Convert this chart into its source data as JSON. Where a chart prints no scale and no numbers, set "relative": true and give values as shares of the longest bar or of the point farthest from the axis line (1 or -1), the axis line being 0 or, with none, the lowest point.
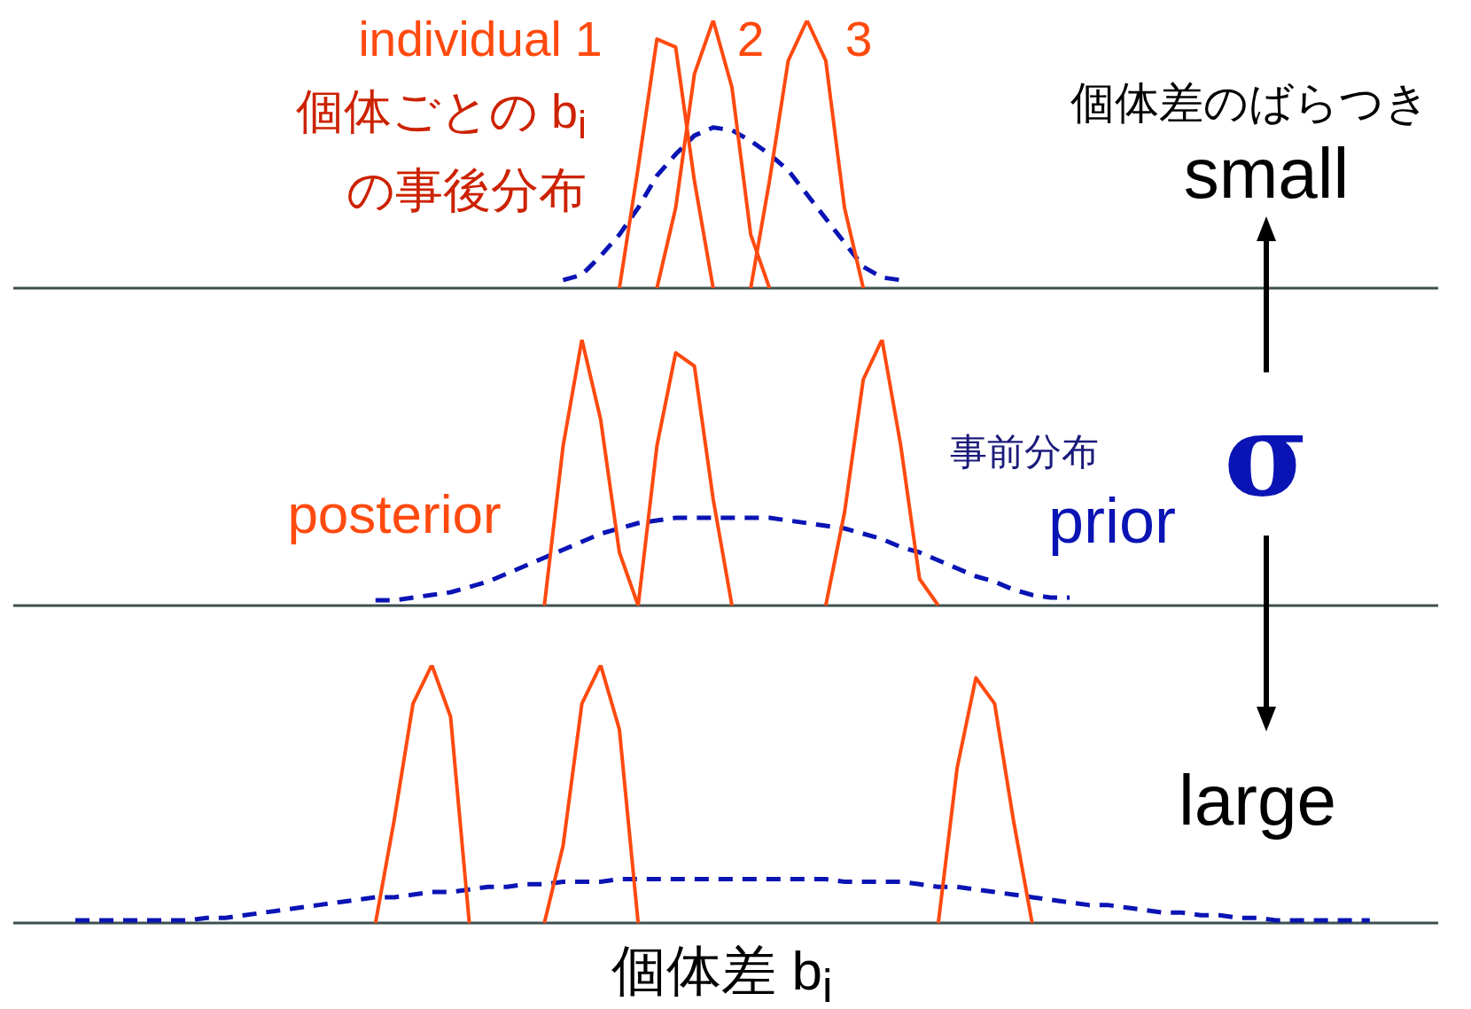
{
  "chart_data": [
    {
      "type": "line",
      "relative": true,
      "categories": [
        null,
        null,
        null,
        null,
        null,
        null,
        null,
        null,
        null,
        null,
        null,
        null,
        null,
        null,
        null,
        null,
        null,
        null,
        null,
        null,
        null,
        null,
        null,
        null,
        null,
        null,
        null,
        null,
        null,
        null,
        null,
        null,
        null,
        null,
        null,
        null,
        null,
        null,
        null,
        null,
        null,
        null,
        null,
        null,
        null,
        null,
        null,
        null,
        null,
        null,
        null,
        null,
        null,
        null,
        null,
        null,
        null,
        null,
        null,
        null,
        null,
        null,
        null,
        null,
        null,
        null,
        null,
        null,
        null,
        null,
        null
      ],
      "annotations": [
        "個体ごとの b$_{i}$\nの事後分布"
      ],
      "series": [
        {
          "name": "individual 1",
          "color": "#ff4a0f",
          "line_style": "solid",
          "values": [
            null,
            null,
            null,
            null,
            null,
            null,
            null,
            null,
            null,
            null,
            null,
            null,
            null,
            null,
            null,
            null,
            null,
            null,
            null,
            null,
            null,
            null,
            null,
            null,
            null,
            null,
            null,
            null,
            null,
            0,
            0.45,
            0.93,
            0.9,
            0.4,
            0,
            null,
            null,
            null,
            null,
            null,
            null,
            null,
            null,
            null,
            null,
            null,
            null,
            null,
            null,
            null,
            null,
            null,
            null,
            null,
            null,
            null,
            null,
            null,
            null,
            null,
            null,
            null,
            null,
            null,
            null,
            null,
            null,
            null,
            null,
            null,
            null
          ]
        },
        {
          "name": "2",
          "color": "#ff4a0f",
          "line_style": "solid",
          "values": [
            null,
            null,
            null,
            null,
            null,
            null,
            null,
            null,
            null,
            null,
            null,
            null,
            null,
            null,
            null,
            null,
            null,
            null,
            null,
            null,
            null,
            null,
            null,
            null,
            null,
            null,
            null,
            null,
            null,
            null,
            null,
            0,
            0.3,
            0.8,
            1,
            0.75,
            0.2,
            0,
            null,
            null,
            null,
            null,
            null,
            null,
            null,
            null,
            null,
            null,
            null,
            null,
            null,
            null,
            null,
            null,
            null,
            null,
            null,
            null,
            null,
            null,
            null,
            null,
            null,
            null,
            null,
            null,
            null,
            null,
            null,
            null,
            null
          ]
        },
        {
          "name": "3",
          "color": "#ff4a0f",
          "line_style": "solid",
          "values": [
            null,
            null,
            null,
            null,
            null,
            null,
            null,
            null,
            null,
            null,
            null,
            null,
            null,
            null,
            null,
            null,
            null,
            null,
            null,
            null,
            null,
            null,
            null,
            null,
            null,
            null,
            null,
            null,
            null,
            null,
            null,
            null,
            null,
            null,
            null,
            null,
            0,
            0.4,
            0.85,
            1,
            0.85,
            0.3,
            0,
            null,
            null,
            null,
            null,
            null,
            null,
            null,
            null,
            null,
            null,
            null,
            null,
            null,
            null,
            null,
            null,
            null,
            null,
            null,
            null,
            null,
            null,
            null,
            null,
            null,
            null,
            null,
            null
          ]
        },
        {
          "color": "#0a14b4",
          "line_style": "dashed",
          "values": [
            null,
            null,
            null,
            null,
            null,
            null,
            null,
            null,
            null,
            null,
            null,
            null,
            null,
            null,
            null,
            null,
            null,
            null,
            null,
            null,
            null,
            null,
            null,
            null,
            null,
            null,
            0.03,
            0.05,
            0.12,
            0.2,
            0.3,
            0.42,
            0.5,
            0.57,
            0.6,
            0.59,
            0.55,
            0.5,
            0.44,
            0.35,
            0.26,
            0.17,
            0.08,
            0.04,
            0.03,
            null,
            null,
            null,
            null,
            null,
            null,
            null,
            null,
            null,
            null,
            null,
            null,
            null,
            null,
            null,
            null,
            null,
            null,
            null,
            null,
            null,
            null,
            null,
            null,
            null,
            null
          ]
        }
      ]
    },
    {
      "type": "line",
      "relative": true,
      "categories": [
        null,
        null,
        null,
        null,
        null,
        null,
        null,
        null,
        null,
        null,
        null,
        null,
        null,
        null,
        null,
        null,
        null,
        null,
        null,
        null,
        null,
        null,
        null,
        null,
        null,
        null,
        null,
        null,
        null,
        null,
        null,
        null,
        null,
        null,
        null,
        null,
        null,
        null,
        null,
        null,
        null,
        null,
        null,
        null,
        null,
        null,
        null,
        null,
        null,
        null,
        null,
        null,
        null,
        null,
        null,
        null,
        null,
        null,
        null,
        null,
        null,
        null,
        null,
        null,
        null,
        null,
        null,
        null,
        null,
        null,
        null
      ],
      "annotations": [
        "事前分布"
      ],
      "series": [
        {
          "name": "posterior",
          "color": "#ff4a0f",
          "line_style": "solid",
          "values": [
            null,
            null,
            null,
            null,
            null,
            null,
            null,
            null,
            null,
            null,
            null,
            null,
            null,
            null,
            null,
            null,
            null,
            null,
            null,
            null,
            null,
            null,
            null,
            null,
            null,
            0,
            0.6,
            1,
            0.7,
            0.2,
            0,
            null,
            null,
            null,
            null,
            null,
            null,
            null,
            null,
            null,
            null,
            null,
            null,
            null,
            null,
            null,
            null,
            null,
            null,
            null,
            null,
            null,
            null,
            null,
            null,
            null,
            null,
            null,
            null,
            null,
            null,
            null,
            null,
            null,
            null,
            null,
            null,
            null,
            null,
            null,
            null
          ]
        },
        {
          "color": "#ff4a0f",
          "line_style": "solid",
          "values": [
            null,
            null,
            null,
            null,
            null,
            null,
            null,
            null,
            null,
            null,
            null,
            null,
            null,
            null,
            null,
            null,
            null,
            null,
            null,
            null,
            null,
            null,
            null,
            null,
            null,
            null,
            null,
            null,
            null,
            null,
            0,
            0.6,
            0.95,
            0.9,
            0.4,
            0,
            null,
            null,
            null,
            null,
            null,
            null,
            null,
            null,
            null,
            null,
            null,
            null,
            null,
            null,
            null,
            null,
            null,
            null,
            null,
            null,
            null,
            null,
            null,
            null,
            null,
            null,
            null,
            null,
            null,
            null,
            null,
            null,
            null,
            null,
            null
          ]
        },
        {
          "color": "#ff4a0f",
          "line_style": "solid",
          "values": [
            null,
            null,
            null,
            null,
            null,
            null,
            null,
            null,
            null,
            null,
            null,
            null,
            null,
            null,
            null,
            null,
            null,
            null,
            null,
            null,
            null,
            null,
            null,
            null,
            null,
            null,
            null,
            null,
            null,
            null,
            null,
            null,
            null,
            null,
            null,
            null,
            null,
            null,
            null,
            null,
            0,
            0.35,
            0.85,
            1,
            0.6,
            0.1,
            0,
            null,
            null,
            null,
            null,
            null,
            null,
            null,
            null,
            null,
            null,
            null,
            null,
            null,
            null,
            null,
            null,
            null,
            null,
            null,
            null,
            null,
            null,
            null,
            null
          ]
        },
        {
          "name": "prior",
          "color": "#0a14b4",
          "line_style": "dashed",
          "values": [
            null,
            null,
            null,
            null,
            null,
            null,
            null,
            null,
            null,
            null,
            null,
            null,
            null,
            null,
            null,
            null,
            0.02,
            0.02,
            0.03,
            0.04,
            0.05,
            0.07,
            0.09,
            0.12,
            0.15,
            0.18,
            0.21,
            0.24,
            0.27,
            0.29,
            0.31,
            0.32,
            0.33,
            0.33,
            0.33,
            0.33,
            0.33,
            0.33,
            0.32,
            0.31,
            0.3,
            0.29,
            0.27,
            0.25,
            0.22,
            0.2,
            0.17,
            0.14,
            0.11,
            0.09,
            0.06,
            0.04,
            0.03,
            0.03,
            null,
            null,
            null,
            null,
            null,
            null,
            null,
            null,
            null,
            null,
            null,
            null,
            null,
            null,
            null,
            null,
            null
          ]
        }
      ]
    },
    {
      "type": "line",
      "relative": true,
      "xlabel": "個体差 b$_{i}$",
      "categories": [
        null,
        null,
        null,
        null,
        null,
        null,
        null,
        null,
        null,
        null,
        null,
        null,
        null,
        null,
        null,
        null,
        null,
        null,
        null,
        null,
        null,
        null,
        null,
        null,
        null,
        null,
        null,
        null,
        null,
        null,
        null,
        null,
        null,
        null,
        null,
        null,
        null,
        null,
        null,
        null,
        null,
        null,
        null,
        null,
        null,
        null,
        null,
        null,
        null,
        null,
        null,
        null,
        null,
        null,
        null,
        null,
        null,
        null,
        null,
        null,
        null,
        null,
        null,
        null,
        null,
        null,
        null,
        null,
        null,
        null,
        null
      ],
      "series": [
        {
          "color": "#ff4a0f",
          "line_style": "solid",
          "values": [
            null,
            null,
            null,
            null,
            null,
            null,
            null,
            null,
            null,
            null,
            null,
            null,
            null,
            null,
            null,
            null,
            0,
            0.4,
            0.85,
            1,
            0.8,
            0,
            null,
            null,
            null,
            null,
            null,
            null,
            null,
            null,
            null,
            null,
            null,
            null,
            null,
            null,
            null,
            null,
            null,
            null,
            null,
            null,
            null,
            null,
            null,
            null,
            null,
            null,
            null,
            null,
            null,
            null,
            null,
            null,
            null,
            null,
            null,
            null,
            null,
            null,
            null,
            null,
            null,
            null,
            null,
            null,
            null,
            null,
            null,
            null,
            null
          ]
        },
        {
          "color": "#ff4a0f",
          "line_style": "solid",
          "values": [
            null,
            null,
            null,
            null,
            null,
            null,
            null,
            null,
            null,
            null,
            null,
            null,
            null,
            null,
            null,
            null,
            null,
            null,
            null,
            null,
            null,
            null,
            null,
            null,
            null,
            0,
            0.3,
            0.85,
            1,
            0.75,
            0,
            null,
            null,
            null,
            null,
            null,
            null,
            null,
            null,
            null,
            null,
            null,
            null,
            null,
            null,
            null,
            null,
            null,
            null,
            null,
            null,
            null,
            null,
            null,
            null,
            null,
            null,
            null,
            null,
            null,
            null,
            null,
            null,
            null,
            null,
            null,
            null,
            null,
            null,
            null,
            null
          ]
        },
        {
          "color": "#ff4a0f",
          "line_style": "solid",
          "values": [
            null,
            null,
            null,
            null,
            null,
            null,
            null,
            null,
            null,
            null,
            null,
            null,
            null,
            null,
            null,
            null,
            null,
            null,
            null,
            null,
            null,
            null,
            null,
            null,
            null,
            null,
            null,
            null,
            null,
            null,
            null,
            null,
            null,
            null,
            null,
            null,
            null,
            null,
            null,
            null,
            null,
            null,
            null,
            null,
            null,
            null,
            0,
            0.6,
            0.95,
            0.85,
            0.4,
            0,
            null,
            null,
            null,
            null,
            null,
            null,
            null,
            null,
            null,
            null,
            null,
            null,
            null,
            null,
            null,
            null,
            null,
            null,
            null
          ]
        },
        {
          "color": "#0a14b4",
          "line_style": "dashed",
          "values": [
            0.01,
            0.01,
            0.01,
            0.01,
            0.01,
            0.01,
            0.01,
            0.02,
            0.02,
            0.03,
            0.04,
            0.05,
            0.06,
            0.07,
            0.08,
            0.09,
            0.1,
            0.1,
            0.11,
            0.12,
            0.12,
            0.13,
            0.14,
            0.14,
            0.15,
            0.15,
            0.16,
            0.16,
            0.16,
            0.17,
            0.17,
            0.17,
            0.17,
            0.17,
            0.17,
            0.17,
            0.17,
            0.17,
            0.17,
            0.17,
            0.17,
            0.16,
            0.16,
            0.16,
            0.16,
            0.15,
            0.14,
            0.14,
            0.13,
            0.12,
            0.11,
            0.1,
            0.09,
            0.08,
            0.07,
            0.07,
            0.06,
            0.05,
            0.04,
            0.04,
            0.03,
            0.03,
            0.02,
            0.02,
            0.01,
            0.01,
            0.01,
            0.01,
            0.01,
            0.01,
            null
          ]
        }
      ]
    },
    {
      "type": "other",
      "annotations": [
        "個体差のばらつき",
        "small",
        "σ",
        "large"
      ]
    }
  ]
}
